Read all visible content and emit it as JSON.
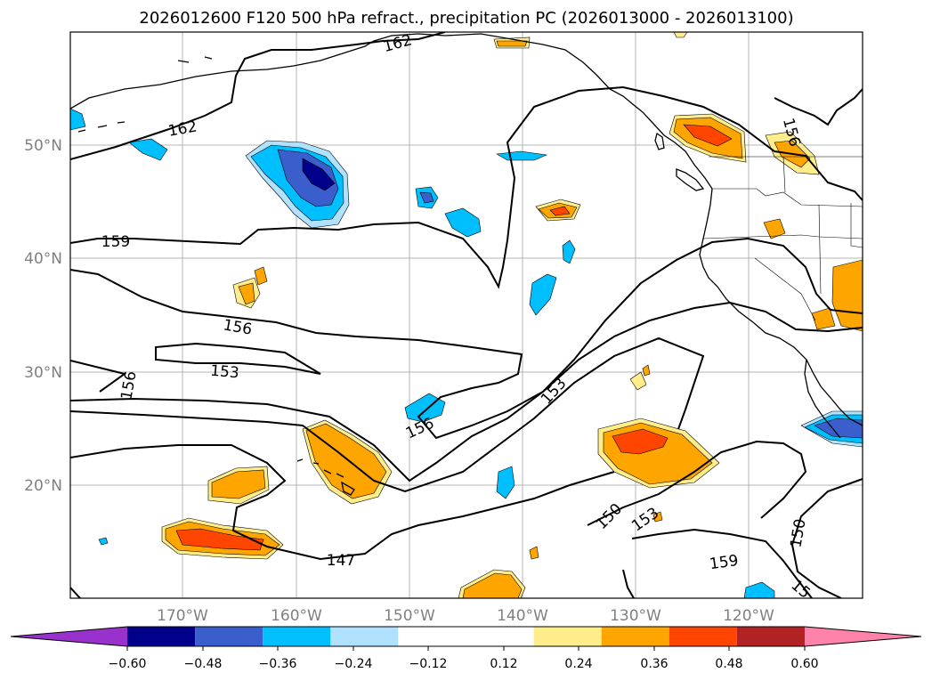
{
  "title": "2026012600 F120 500 hPa refract., precipitation PC (2026013000 - 2026013100)",
  "map": {
    "lon_range": [
      -180,
      -110
    ],
    "lat_range": [
      10,
      60
    ],
    "lon_ticks": [
      {
        "value": -170,
        "label": "170°W"
      },
      {
        "value": -160,
        "label": "160°W"
      },
      {
        "value": -150,
        "label": "150°W"
      },
      {
        "value": -140,
        "label": "140°W"
      },
      {
        "value": -130,
        "label": "130°W"
      },
      {
        "value": -120,
        "label": "120°W"
      }
    ],
    "lat_ticks": [
      {
        "value": 20,
        "label": "20°N"
      },
      {
        "value": 30,
        "label": "30°N"
      },
      {
        "value": 40,
        "label": "40°N"
      },
      {
        "value": 50,
        "label": "50°N"
      }
    ],
    "gridlines": true,
    "contour_labels": [
      "162",
      "162",
      "159",
      "156",
      "156",
      "153",
      "156",
      "153",
      "150",
      "153",
      "150",
      "159",
      "15",
      "156",
      "147"
    ]
  },
  "colorbar": {
    "orientation": "horizontal",
    "extend": "both",
    "boundaries": [
      -0.72,
      -0.6,
      -0.48,
      -0.36,
      -0.24,
      -0.12,
      0.12,
      0.24,
      0.36,
      0.48,
      0.6,
      0.72
    ],
    "colors": [
      "#9932cc",
      "#00008b",
      "#3a5fcd",
      "#00bfff",
      "#b0e2ff",
      "#ffffff",
      "#ffec8b",
      "#ffa500",
      "#ff4500",
      "#b22222",
      "#ff82ab"
    ],
    "tick_labels": [
      "−0.60",
      "−0.48",
      "−0.36",
      "−0.24",
      "−0.12",
      "0.12",
      "0.24",
      "0.36",
      "0.48",
      "0.60"
    ]
  }
}
